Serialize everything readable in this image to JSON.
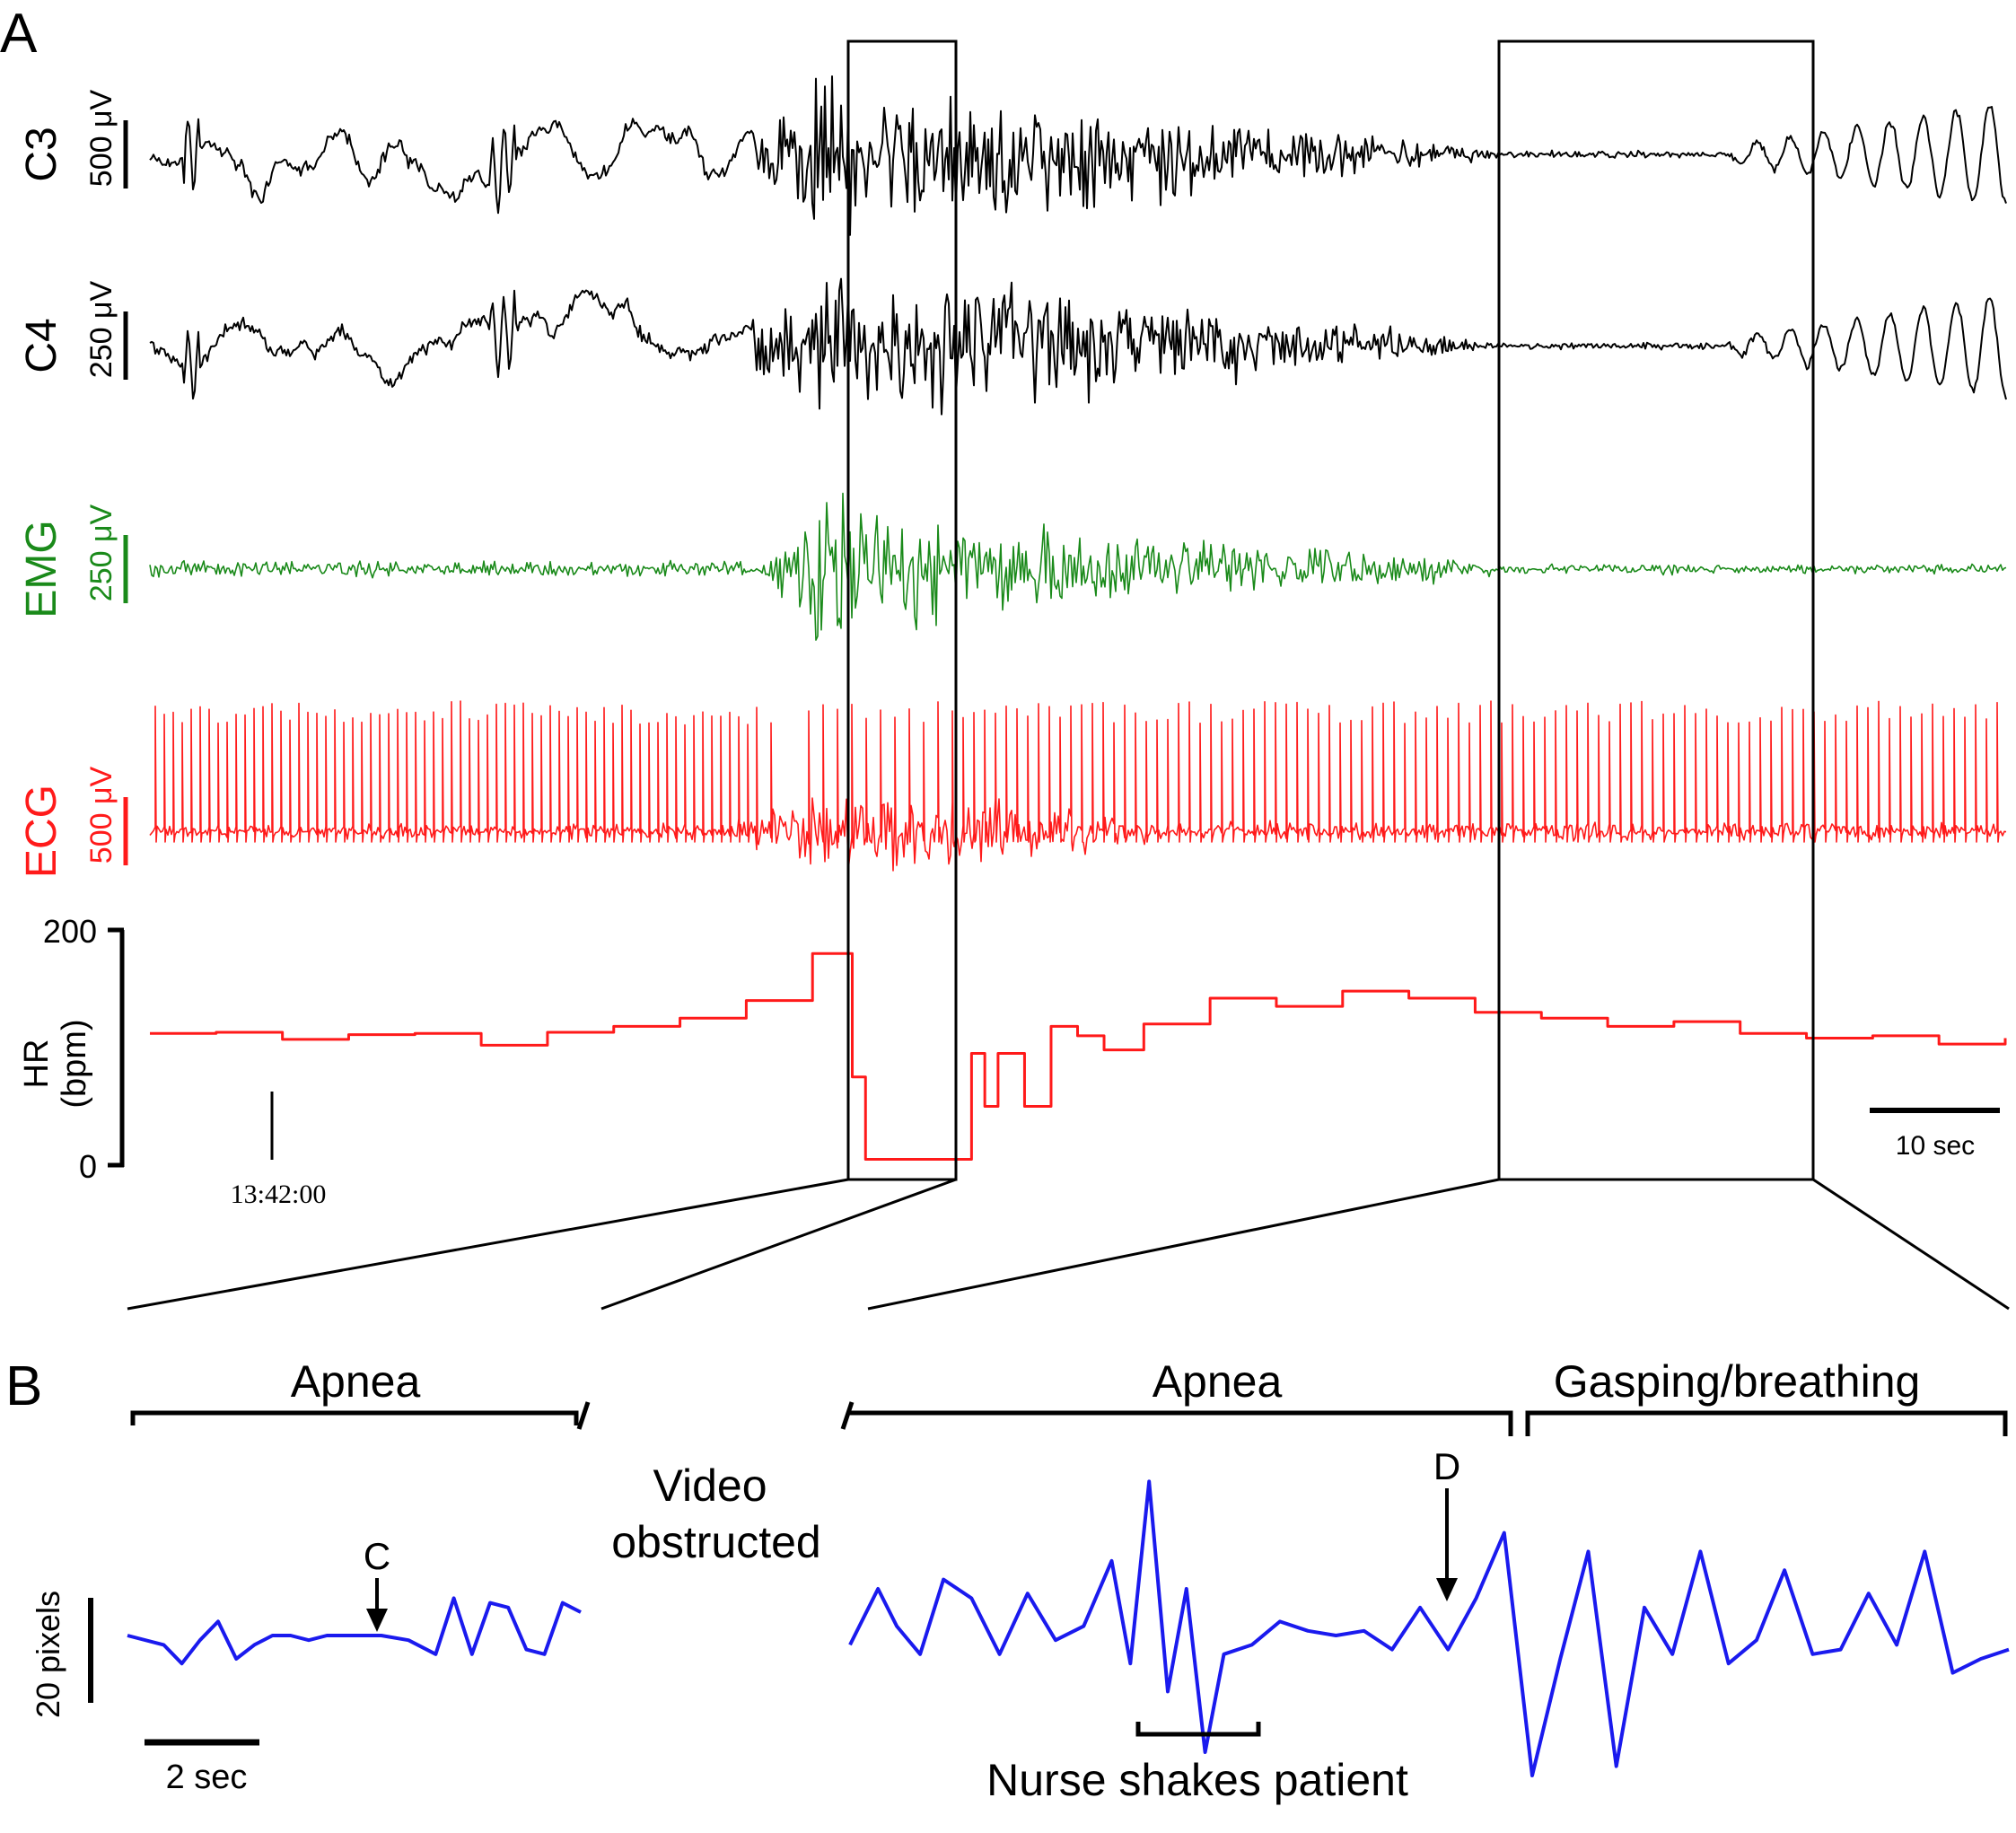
{
  "panels": {
    "a": "A",
    "b": "B"
  },
  "colors": {
    "eeg": "#000000",
    "emg": "#1a8a1a",
    "ecg": "#ff1a1a",
    "hr": "#ff1a1a",
    "movement": "#1a1aee",
    "frame": "#000000"
  },
  "chart_data": [
    {
      "type": "line",
      "panel": "A",
      "series": [
        {
          "name": "C3",
          "scale": "500 μV",
          "color": "#000000"
        },
        {
          "name": "C4",
          "scale": "250 μV",
          "color": "#000000"
        },
        {
          "name": "EMG",
          "scale": "250 μV",
          "color": "#1a8a1a"
        },
        {
          "name": "ECG",
          "scale": "500 μV",
          "color": "#ff1a1a"
        }
      ],
      "hr": {
        "label": "HR",
        "unit": "(bpm)",
        "yticks": [
          "200",
          "0"
        ],
        "ylim": [
          0,
          200
        ],
        "t": [
          0,
          5,
          10,
          15,
          20,
          25,
          30,
          35,
          40,
          45,
          50,
          52,
          53,
          54,
          58,
          60,
          62,
          63,
          64,
          66,
          68,
          70,
          72,
          75,
          80,
          85,
          90,
          95,
          100,
          105,
          110,
          115,
          120,
          125,
          130,
          135,
          140
        ],
        "values": [
          112,
          113,
          107,
          111,
          112,
          102,
          113,
          118,
          125,
          140,
          180,
          180,
          75,
          5,
          5,
          5,
          95,
          50,
          95,
          50,
          118,
          110,
          98,
          120,
          142,
          135,
          148,
          142,
          130,
          125,
          118,
          122,
          112,
          108,
          110,
          103,
          108
        ]
      },
      "time_marker": "13:42:00",
      "scale_bar": "10 sec"
    },
    {
      "type": "line",
      "panel": "B",
      "ylabel": "20 pixels",
      "scale_bar": "2 sec",
      "annotations": [
        "Apnea",
        "Video obstructed",
        "Apnea",
        "Gasping/breathing",
        "Nurse shakes patient",
        "C",
        "D"
      ],
      "segment_1": {
        "t": [
          0,
          0.8,
          1.2,
          1.6,
          2.0,
          2.4,
          2.8,
          3.2,
          3.6,
          4.0,
          4.4,
          5.0,
          5.6,
          6.2,
          6.8,
          7.2,
          7.6,
          8.0,
          8.4,
          8.8,
          9.2,
          9.6,
          10.0
        ],
        "values": [
          0,
          -2,
          -6,
          -1,
          3,
          -5,
          -2,
          0,
          0,
          -1,
          0,
          0,
          0,
          -1,
          -4,
          8,
          -4,
          7,
          6,
          -3,
          -4,
          7,
          5
        ]
      },
      "segment_2": {
        "t": [
          0,
          0.6,
          1.0,
          1.5,
          2.0,
          2.6,
          3.2,
          3.8,
          4.4,
          5.0,
          5.6,
          6.0,
          6.4,
          6.8,
          7.2,
          7.6,
          8.0,
          8.6,
          9.2,
          9.8,
          10.4,
          11.0,
          11.6,
          12.2,
          12.8,
          13.4,
          14.0,
          14.6,
          15.2,
          15.8,
          16.4,
          17.0,
          17.6,
          18.2,
          18.8,
          19.4,
          20.0,
          20.6,
          21.2,
          21.8,
          22.4,
          23.0,
          23.6,
          24.2,
          24.8
        ],
        "values": [
          -2,
          10,
          2,
          -4,
          12,
          8,
          -4,
          9,
          -1,
          2,
          16,
          -6,
          33,
          -12,
          10,
          -25,
          -4,
          -2,
          3,
          1,
          0,
          1,
          -3,
          6,
          -3,
          8,
          22,
          -30,
          -5,
          18,
          -28,
          6,
          -4,
          18,
          -6,
          -1,
          14,
          -4,
          -3,
          9,
          -2,
          18,
          -8,
          -5,
          -3
        ]
      }
    }
  ]
}
